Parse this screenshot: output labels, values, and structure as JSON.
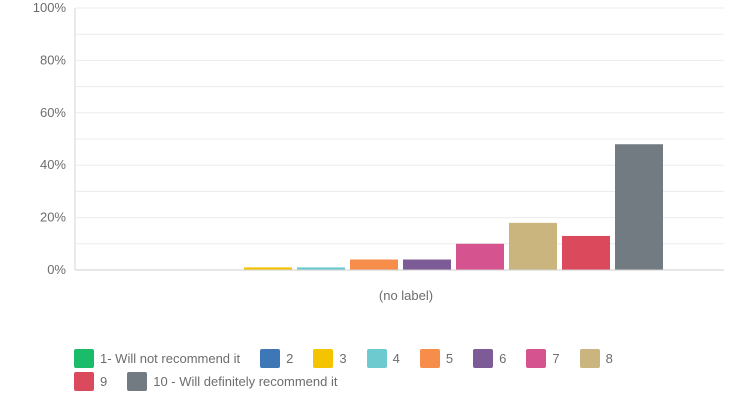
{
  "chart_data": {
    "type": "bar",
    "categories": [
      "(no label)"
    ],
    "xlabel": "(no label)",
    "ylim": [
      0,
      100
    ],
    "yticks": [
      "0%",
      "20%",
      "40%",
      "60%",
      "80%",
      "100%"
    ],
    "grid": true,
    "legend_position": "bottom",
    "series": [
      {
        "name": "1- Will not recommend it",
        "color": "#1abc6a",
        "values": [
          0
        ]
      },
      {
        "name": "2",
        "color": "#3d77b6",
        "values": [
          0
        ]
      },
      {
        "name": "3",
        "color": "#f5c400",
        "values": [
          1
        ]
      },
      {
        "name": "4",
        "color": "#6dcbd0",
        "values": [
          1
        ]
      },
      {
        "name": "5",
        "color": "#f68d4b",
        "values": [
          4
        ]
      },
      {
        "name": "6",
        "color": "#7c5b96",
        "values": [
          4
        ]
      },
      {
        "name": "7",
        "color": "#d5548f",
        "values": [
          10
        ]
      },
      {
        "name": "8",
        "color": "#c9b57d",
        "values": [
          18
        ]
      },
      {
        "name": "9",
        "color": "#db4a5c",
        "values": [
          13
        ]
      },
      {
        "name": "10 - Will definitely recommend it",
        "color": "#737b82",
        "values": [
          48
        ]
      }
    ]
  }
}
